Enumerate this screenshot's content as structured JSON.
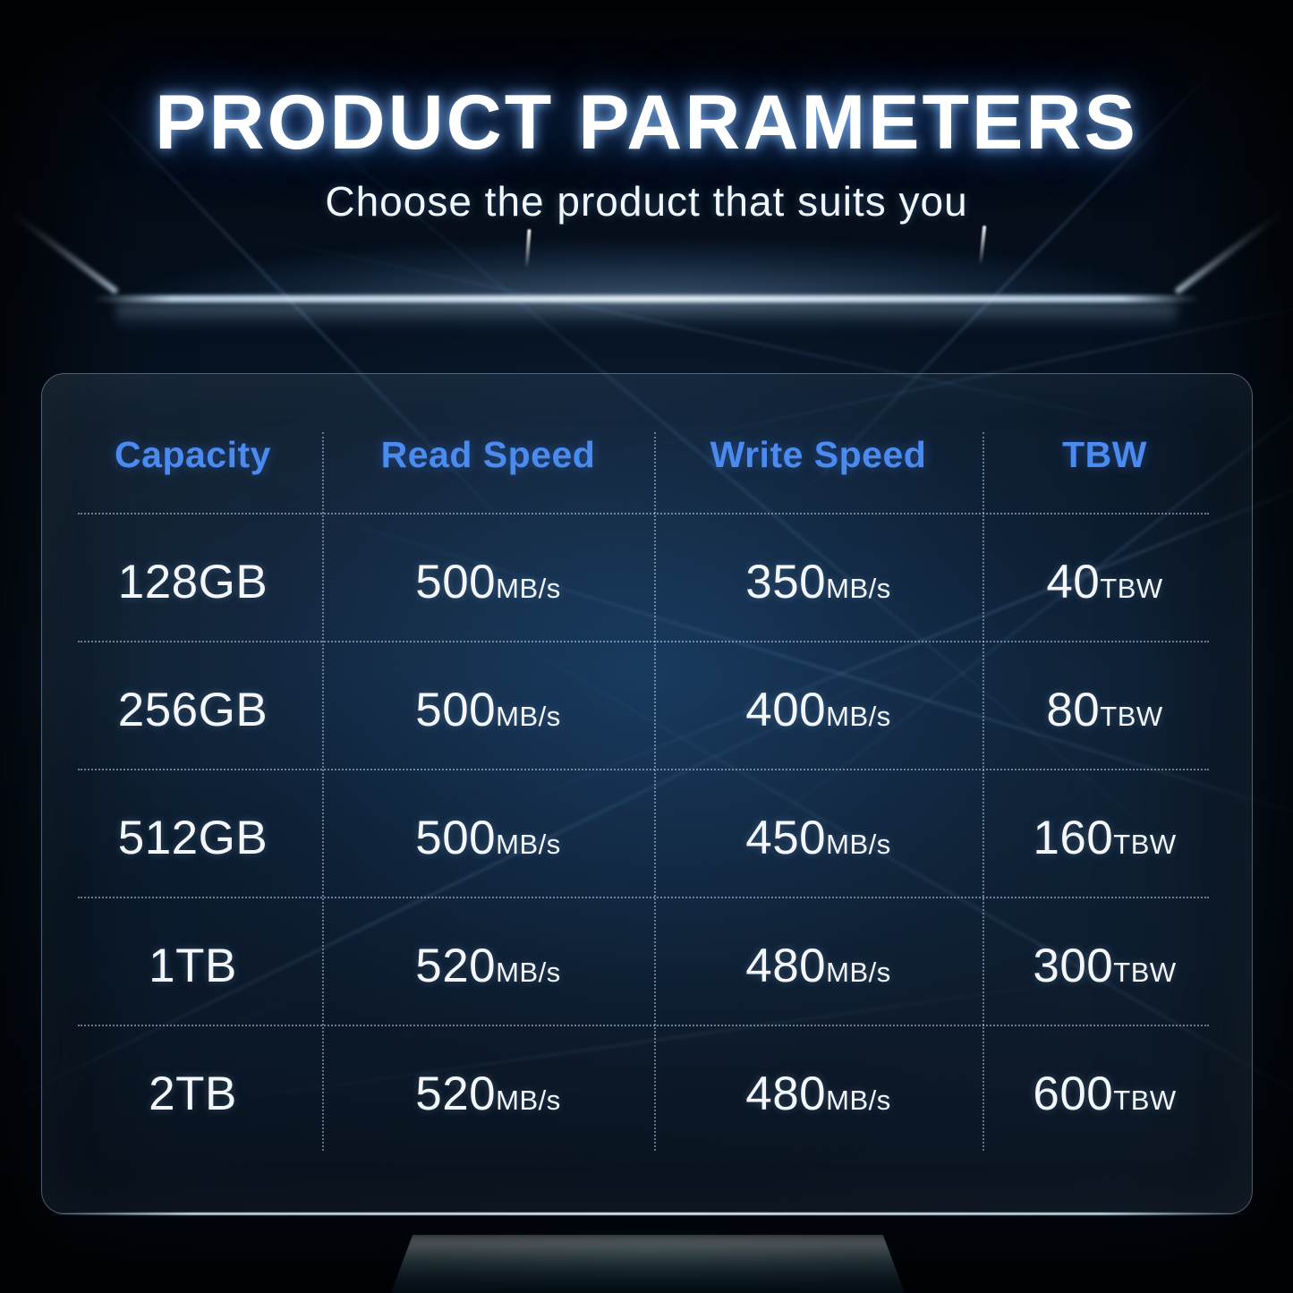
{
  "page": {
    "title": "PRODUCT PARAMETERS",
    "subtitle": "Choose the product that suits you"
  },
  "colors": {
    "accent_blue": "#4b8bf0",
    "text_white": "#f3f7fb",
    "background_dark": "#061220",
    "ray_blue": "#7fb8ff"
  },
  "chart_data": {
    "type": "table",
    "title": "PRODUCT PARAMETERS",
    "subtitle": "Choose the product that suits you",
    "columns": [
      "Capacity",
      "Read Speed",
      "Write Speed",
      "TBW"
    ],
    "rows": [
      {
        "capacity": "128GB",
        "read": {
          "value": "500",
          "unit": "MB/s"
        },
        "write": {
          "value": "350",
          "unit": "MB/s"
        },
        "tbw": {
          "value": "40",
          "unit": "TBW"
        }
      },
      {
        "capacity": "256GB",
        "read": {
          "value": "500",
          "unit": "MB/s"
        },
        "write": {
          "value": "400",
          "unit": "MB/s"
        },
        "tbw": {
          "value": "80",
          "unit": "TBW"
        }
      },
      {
        "capacity": "512GB",
        "read": {
          "value": "500",
          "unit": "MB/s"
        },
        "write": {
          "value": "450",
          "unit": "MB/s"
        },
        "tbw": {
          "value": "160",
          "unit": "TBW"
        }
      },
      {
        "capacity": "1TB",
        "read": {
          "value": "520",
          "unit": "MB/s"
        },
        "write": {
          "value": "480",
          "unit": "MB/s"
        },
        "tbw": {
          "value": "300",
          "unit": "TBW"
        }
      },
      {
        "capacity": "2TB",
        "read": {
          "value": "520",
          "unit": "MB/s"
        },
        "write": {
          "value": "480",
          "unit": "MB/s"
        },
        "tbw": {
          "value": "600",
          "unit": "TBW"
        }
      }
    ],
    "capacities": [
      "128GB",
      "256GB",
      "512GB",
      "1TB",
      "2TB"
    ],
    "read_speed_mbps": [
      500,
      500,
      500,
      520,
      520
    ],
    "write_speed_mbps": [
      350,
      400,
      450,
      480,
      480
    ],
    "tbw_values": [
      40,
      80,
      160,
      300,
      600
    ]
  }
}
